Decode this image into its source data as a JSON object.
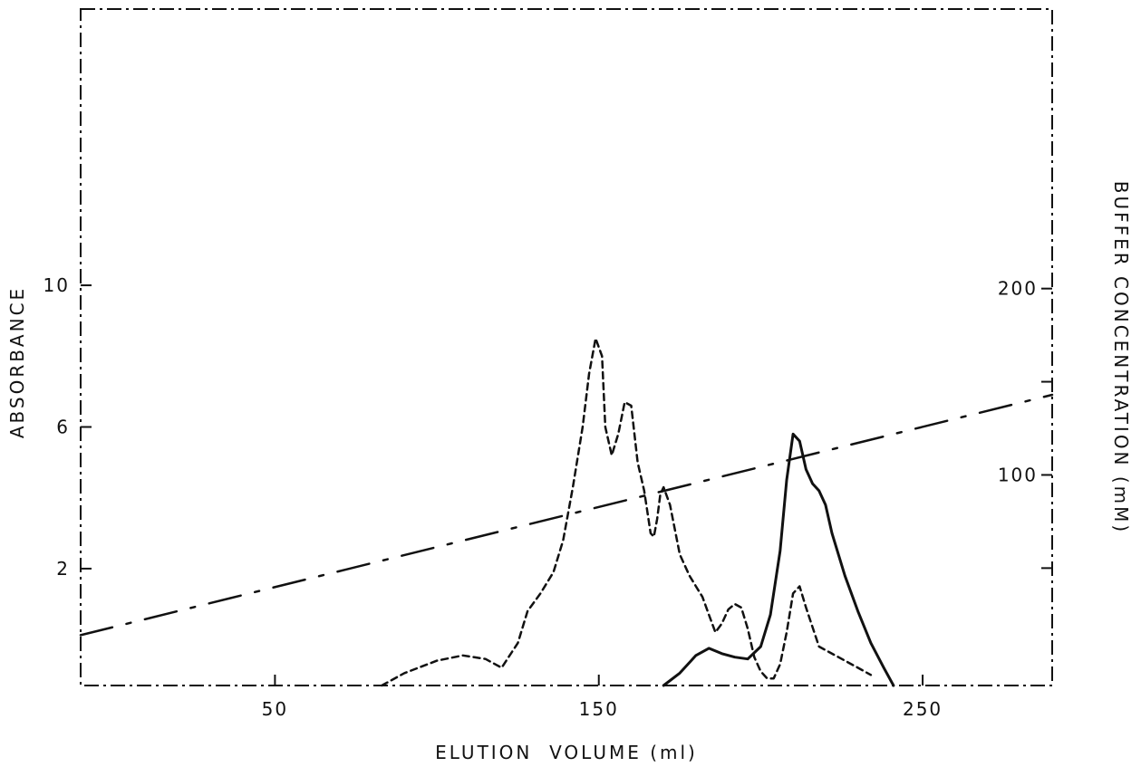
{
  "chart_data": {
    "type": "line",
    "xlabel": "ELUTION  VOLUME (ml)",
    "ylabel": "ABSORBANCE",
    "y2label": "BUFFER CONCENTRATION (mM)",
    "xlim": [
      -10,
      290
    ],
    "ylim": [
      -1.3,
      17.8
    ],
    "y2lim": [
      -13,
      350
    ],
    "x_ticks": [
      50,
      150,
      250
    ],
    "x_tick_labels": [
      "50",
      "150",
      "250"
    ],
    "y_ticks": [
      2,
      6,
      10
    ],
    "y_tick_labels": [
      "2",
      "6",
      "10"
    ],
    "y2_ticks": [
      50,
      100,
      150,
      200
    ],
    "y2_tick_labels": [
      "",
      "100",
      "",
      "200"
    ],
    "grid": false,
    "legend": null,
    "series": [
      {
        "style": "dashed",
        "axis": "left",
        "color": "#111111",
        "x": [
          83,
          90,
          100,
          108,
          115,
          120,
          125,
          128,
          132,
          136,
          139,
          142,
          145,
          147,
          149,
          151,
          152,
          154,
          156,
          158,
          160,
          162,
          164,
          166,
          167,
          168,
          169,
          170,
          172,
          175,
          178,
          180,
          182,
          184,
          186,
          188,
          190,
          192,
          194,
          196,
          198,
          200,
          202,
          204,
          206,
          208,
          210,
          212,
          214,
          218,
          224,
          230,
          234
        ],
        "y": [
          -1.3,
          -0.95,
          -0.6,
          -0.45,
          -0.55,
          -0.8,
          -0.1,
          0.8,
          1.3,
          1.9,
          2.8,
          4.3,
          6.0,
          7.5,
          8.5,
          8.0,
          6.0,
          5.2,
          5.8,
          6.7,
          6.6,
          5.0,
          4.2,
          3.0,
          2.9,
          3.4,
          4.1,
          4.3,
          3.8,
          2.4,
          1.8,
          1.5,
          1.2,
          0.7,
          0.2,
          0.45,
          0.85,
          1.0,
          0.9,
          0.3,
          -0.5,
          -0.9,
          -1.1,
          -1.1,
          -0.7,
          0.2,
          1.3,
          1.5,
          0.9,
          -0.2,
          -0.5,
          -0.8,
          -1.0
        ]
      },
      {
        "style": "solid",
        "axis": "left",
        "color": "#111111",
        "x": [
          170,
          175,
          180,
          184,
          188,
          192,
          196,
          200,
          203,
          206,
          208,
          210,
          212,
          214,
          216,
          218,
          220,
          222,
          226,
          230,
          234,
          238,
          241
        ],
        "y": [
          -1.3,
          -0.95,
          -0.45,
          -0.25,
          -0.4,
          -0.5,
          -0.55,
          -0.2,
          0.7,
          2.5,
          4.5,
          5.8,
          5.6,
          4.8,
          4.4,
          4.2,
          3.8,
          3.0,
          1.8,
          0.8,
          -0.1,
          -0.8,
          -1.3
        ]
      },
      {
        "style": "dash-dot",
        "axis": "right",
        "color": "#111111",
        "x": [
          -10,
          290
        ],
        "y": [
          14,
          143
        ]
      }
    ]
  }
}
